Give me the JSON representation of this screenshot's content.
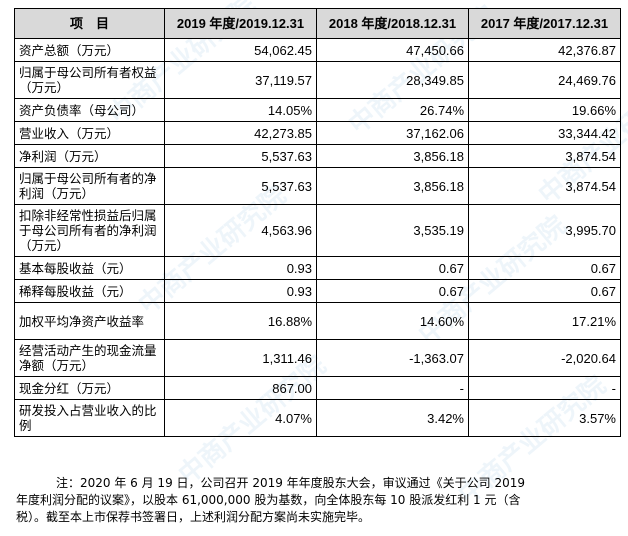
{
  "table": {
    "headers": [
      "项　目",
      "2019 年度/2019.12.31",
      "2018 年度/2018.12.31",
      "2017 年度/2017.12.31"
    ],
    "rows": [
      {
        "label": "资产总额（万元）",
        "v2019": "54,062.45",
        "v2018": "47,450.66",
        "v2017": "42,376.87",
        "h": "h1"
      },
      {
        "label": "归属于母公司所有者权益（万元）",
        "v2019": "37,119.57",
        "v2018": "28,349.85",
        "v2017": "24,469.76",
        "h": "h2"
      },
      {
        "label": "资产负债率（母公司）",
        "v2019": "14.05%",
        "v2018": "26.74%",
        "v2017": "19.66%",
        "h": "h1"
      },
      {
        "label": "营业收入（万元）",
        "v2019": "42,273.85",
        "v2018": "37,162.06",
        "v2017": "33,344.42",
        "h": "h1"
      },
      {
        "label": "净利润（万元）",
        "v2019": "5,537.63",
        "v2018": "3,856.18",
        "v2017": "3,874.54",
        "h": "h1"
      },
      {
        "label": "归属于母公司所有者的净利润（万元）",
        "v2019": "5,537.63",
        "v2018": "3,856.18",
        "v2017": "3,874.54",
        "h": "h2"
      },
      {
        "label": "扣除非经常性损益后归属于母公司所有者的净利润（万元）",
        "v2019": "4,563.96",
        "v2018": "3,535.19",
        "v2017": "3,995.70",
        "h": "h3"
      },
      {
        "label": "基本每股收益（元）",
        "v2019": "0.93",
        "v2018": "0.67",
        "v2017": "0.67",
        "h": "h1"
      },
      {
        "label": "稀释每股收益（元）",
        "v2019": "0.93",
        "v2018": "0.67",
        "v2017": "0.67",
        "h": "h1"
      },
      {
        "label": "加权平均净资产收益率",
        "v2019": "16.88%",
        "v2018": "14.60%",
        "v2017": "17.21%",
        "h": "h2"
      },
      {
        "label": "经营活动产生的现金流量净额（万元）",
        "v2019": "1,311.46",
        "v2018": "-1,363.07",
        "v2017": "-2,020.64",
        "h": "h2"
      },
      {
        "label": "现金分红（万元）",
        "v2019": "867.00",
        "v2018": "-",
        "v2017": "-",
        "h": "h1"
      },
      {
        "label": "研发投入占营业收入的比例",
        "v2019": "4.07%",
        "v2018": "3.42%",
        "v2017": "3.57%",
        "h": "h2"
      }
    ]
  },
  "note": {
    "line1": "注：2020 年 6 月 19 日，公司召开 2019 年年度股东大会，审议通过《关于公司 2019",
    "line2": "年度利润分配的议案》，以股本 61,000,000 股为基数，向全体股东每 10 股派发红利 1 元（含",
    "line3": "税）。截至本上市保荐书签署日，上述利润分配方案尚未实施完毕。"
  },
  "watermark": {
    "text": "中商产业研究院",
    "color": "#5aa0d2"
  }
}
